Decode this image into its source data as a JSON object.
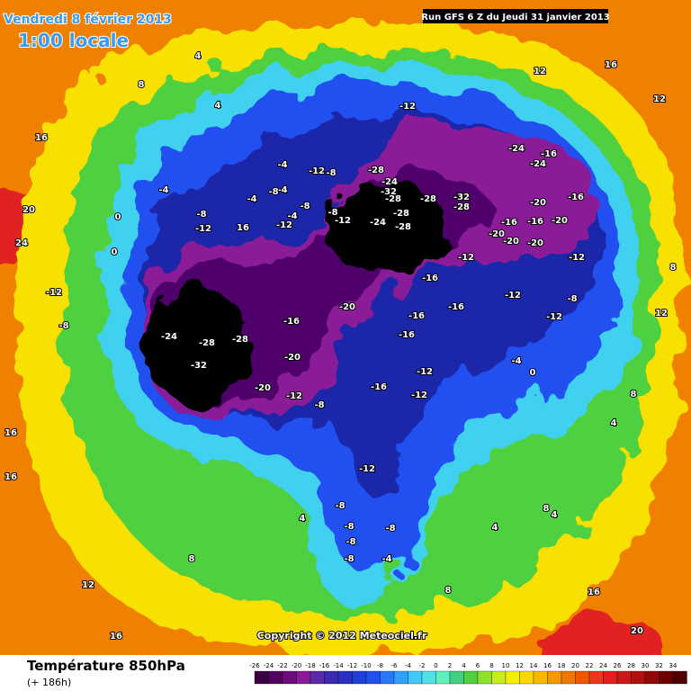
{
  "header": {
    "date": "Vendredi 8 février 2013",
    "time": "1:00 locale",
    "run": "Run GFS 6 Z du Jeudi 31 janvier 2013"
  },
  "copyright": "Copyright © 2012 Meteociel.fr",
  "footer": {
    "title": "Température 850hPa",
    "lead": "(+ 186h)"
  },
  "legend": {
    "ticks": [
      -26,
      -24,
      -22,
      -20,
      -18,
      -16,
      -14,
      -12,
      -10,
      -8,
      -6,
      -4,
      -2,
      0,
      2,
      4,
      6,
      8,
      10,
      12,
      14,
      16,
      18,
      20,
      22,
      24,
      26,
      28,
      30,
      32,
      34
    ],
    "colors": [
      "#3a0040",
      "#55005e",
      "#6e0a7c",
      "#8a1a98",
      "#5a2aa8",
      "#3a2ab0",
      "#2a30c0",
      "#1f3fd8",
      "#2050f0",
      "#2878f8",
      "#30a0f8",
      "#40c8f8",
      "#50e0e8",
      "#60f0c0",
      "#40d080",
      "#50d040",
      "#90e030",
      "#c8ec20",
      "#f0f000",
      "#f8d800",
      "#f8b800",
      "#f89800",
      "#f07800",
      "#f05800",
      "#e83820",
      "#e02020",
      "#c81818",
      "#b01010",
      "#900808",
      "#700000",
      "#500000"
    ]
  },
  "map": {
    "contour_labels": [
      "4",
      "8",
      "4",
      "16",
      "20",
      "24",
      "-12",
      "-12",
      "-8",
      "-28",
      "-24",
      "-32",
      "-28",
      "-28",
      "-32",
      "-28",
      "-28",
      "-24",
      "-28",
      "-24",
      "-16",
      "-24",
      "-20",
      "-16",
      "-16",
      "-16",
      "-20",
      "-20",
      "-20",
      "-20",
      "-12",
      "-16",
      "-12",
      "-12",
      "-20",
      "-16",
      "-16",
      "-16",
      "-24",
      "-28",
      "-28",
      "-32",
      "-20",
      "-16",
      "-12",
      "-20",
      "-12",
      "-16",
      "-12",
      "-8",
      "-4",
      "0",
      "-8",
      "-12",
      "-12",
      "-8",
      "-8",
      "-8",
      "-8",
      "-8",
      "-4",
      "8",
      "4",
      "8",
      "4",
      "4",
      "8",
      "12",
      "16",
      "20",
      "16",
      "8",
      "4",
      "12",
      "8",
      "16",
      "12",
      "12",
      "-12",
      "-8",
      "16",
      "16",
      "-12",
      "16",
      "-12",
      "-4",
      "-8",
      "0",
      "0",
      "-4",
      "-4",
      "-4",
      "-4",
      "-8",
      "-8",
      "-12",
      "-8"
    ]
  }
}
